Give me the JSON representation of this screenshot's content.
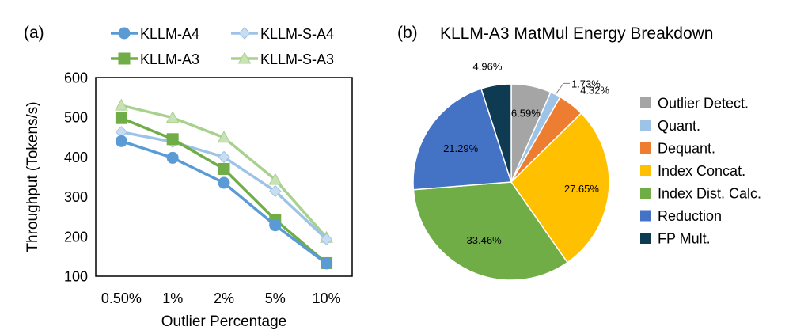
{
  "panels": {
    "left_label": "(a)",
    "right_label": "(b)"
  },
  "chart_data": [
    {
      "type": "line",
      "title": "",
      "xlabel": "Outlier Percentage",
      "ylabel": "Throughput (Tokens/s)",
      "categories": [
        "0.50%",
        "1%",
        "2%",
        "5%",
        "10%"
      ],
      "ylim": [
        100,
        600
      ],
      "yticks": [
        100,
        200,
        300,
        400,
        500,
        600
      ],
      "grid": false,
      "legend_position": "top",
      "series": [
        {
          "name": "KLLM-A4",
          "marker": "circle",
          "style": "solid",
          "color": "#5b9bd5",
          "values": [
            440,
            398,
            335,
            228,
            132
          ]
        },
        {
          "name": "KLLM-S-A4",
          "marker": "diamond",
          "style": "light",
          "color": "#9dc3e6",
          "values": [
            463,
            438,
            400,
            314,
            193
          ]
        },
        {
          "name": "KLLM-A3",
          "marker": "square",
          "style": "solid",
          "color": "#70ad47",
          "values": [
            498,
            445,
            370,
            242,
            133
          ]
        },
        {
          "name": "KLLM-S-A3",
          "marker": "triangle",
          "style": "light",
          "color": "#a9d18e",
          "values": [
            530,
            499,
            449,
            343,
            197
          ]
        }
      ]
    },
    {
      "type": "pie",
      "title": "KLLM-A3 MatMul Energy Breakdown",
      "slices": [
        {
          "name": "Outlier Detect.",
          "value": 6.59,
          "label": "6.59%",
          "color": "#a5a5a5"
        },
        {
          "name": "Quant.",
          "value": 1.73,
          "label": "1.73%",
          "color": "#9dc3e6"
        },
        {
          "name": "Dequant.",
          "value": 4.32,
          "label": "4.32%",
          "color": "#ed7d31"
        },
        {
          "name": "Index Concat.",
          "value": 27.65,
          "label": "27.65%",
          "color": "#ffc000"
        },
        {
          "name": "Index Dist. Calc.",
          "value": 33.46,
          "label": "33.46%",
          "color": "#70ad47"
        },
        {
          "name": "Reduction",
          "value": 21.29,
          "label": "21.29%",
          "color": "#4472c4"
        },
        {
          "name": "FP Mult.",
          "value": 4.96,
          "label": "4.96%",
          "color": "#0e3a52"
        }
      ],
      "legend_position": "right"
    }
  ]
}
